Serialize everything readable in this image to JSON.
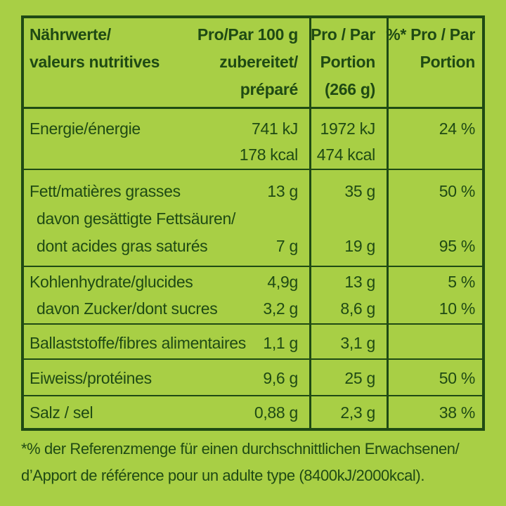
{
  "header": {
    "col1_line1": "Nährwerte/",
    "col1_line2": "valeurs nutritives",
    "col2_line1": "Pro/Par 100 g",
    "col2_line2": "zubereitet/",
    "col2_line3": "préparé",
    "col3_line1": "Pro / Par",
    "col3_line2": "Portion",
    "col3_line3": "(266 g)",
    "col4_line1": "%* Pro / Par",
    "col4_line2": "Portion"
  },
  "rows": {
    "energy": {
      "label": "Energie/énergie",
      "per100_kj": "741 kJ",
      "per100_kcal": "178 kcal",
      "portion_kj": "1972 kJ",
      "portion_kcal": "474 kcal",
      "pct": "24 %"
    },
    "fat": {
      "label": "Fett/matières grasses",
      "per100": "13 g",
      "portion": "35 g",
      "pct": "50 %"
    },
    "satfat": {
      "label_line1": "davon gesättigte Fettsäuren/",
      "label_line2": "dont acides gras saturés",
      "per100": "7 g",
      "portion": "19 g",
      "pct": "95 %"
    },
    "carbs": {
      "label": "Kohlenhydrate/glucides",
      "per100": "4,9g",
      "portion": "13 g",
      "pct": "5 %"
    },
    "sugar": {
      "label": "davon Zucker/dont sucres",
      "per100": "3,2 g",
      "portion": "8,6 g",
      "pct": "10 %"
    },
    "fibre": {
      "label": "Ballaststoffe/fibres alimentaires",
      "per100": "1,1 g",
      "portion": "3,1 g",
      "pct": ""
    },
    "protein": {
      "label": "Eiweiss/protéines",
      "per100": "9,6 g",
      "portion": "25 g",
      "pct": "50 %"
    },
    "salt": {
      "label": "Salz / sel",
      "per100": "0,88 g",
      "portion": "2,3 g",
      "pct": "38 %"
    }
  },
  "footnote": {
    "line1": "*% der Referenzmenge für einen durchschnittlichen Erwachsenen/",
    "line2": "d’Apport de référence pour un adulte type (8400kJ/2000kcal)."
  },
  "colors": {
    "background": "#a8cf45",
    "text": "#1f4a14"
  }
}
